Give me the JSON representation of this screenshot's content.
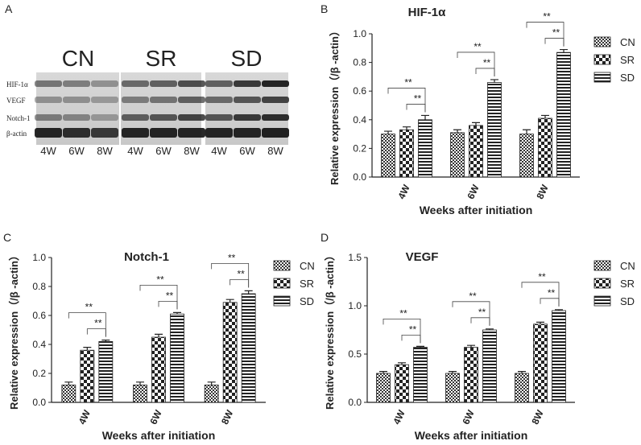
{
  "panel_labels": [
    "A",
    "B",
    "C",
    "D"
  ],
  "blot": {
    "group_labels": [
      "CN",
      "SR",
      "SD"
    ],
    "row_labels": [
      "HIF-1α",
      "VEGF",
      "Notch-1",
      "β-actin"
    ],
    "lane_labels": [
      "4W",
      "6W",
      "8W",
      "4W",
      "6W",
      "8W",
      "4W",
      "6W",
      "8W"
    ]
  },
  "chart_data": [
    {
      "type": "bar",
      "title": "HIF-1α",
      "y_label": "Relative expression（/β -actin）",
      "x_label": "Weeks after initiation",
      "categories": [
        "4W",
        "6W",
        "8W"
      ],
      "ylim": [
        0,
        1.0
      ],
      "yticks": [
        {
          "value": 0,
          "label": "0.0"
        },
        0.2,
        0.4,
        0.6,
        0.8,
        {
          "value": 1.0,
          "label": "1.0"
        }
      ],
      "legend": "right",
      "series": [
        {
          "name": "CN",
          "color": "#222222",
          "pattern": "fine-checker",
          "values": [
            0.3,
            0.31,
            0.3
          ],
          "errors": [
            0.02,
            0.02,
            0.03
          ]
        },
        {
          "name": "SR",
          "color": "#222222",
          "pattern": "checker",
          "values": [
            0.33,
            0.36,
            0.41
          ],
          "errors": [
            0.02,
            0.02,
            0.02
          ]
        },
        {
          "name": "SD",
          "color": "#222222",
          "pattern": "stripes",
          "values": [
            0.4,
            0.66,
            0.87
          ],
          "errors": [
            0.03,
            0.02,
            0.02
          ]
        }
      ],
      "significance": [
        [
          "**",
          "**"
        ],
        [
          "**",
          "**"
        ],
        [
          "**",
          "**"
        ]
      ]
    },
    {
      "type": "bar",
      "title": "Notch-1",
      "y_label": "Relative expression（/β -actin）",
      "x_label": "Weeks after initiation",
      "categories": [
        "4W",
        "6W",
        "8W"
      ],
      "ylim": [
        0,
        1.0
      ],
      "yticks": [
        {
          "value": 0,
          "label": "0.0"
        },
        0.2,
        0.4,
        0.6,
        0.8,
        {
          "value": 1.0,
          "label": "1.0"
        }
      ],
      "legend": "right",
      "series": [
        {
          "name": "CN",
          "color": "#222222",
          "pattern": "fine-checker",
          "values": [
            0.12,
            0.12,
            0.12
          ],
          "errors": [
            0.02,
            0.02,
            0.02
          ]
        },
        {
          "name": "SR",
          "color": "#222222",
          "pattern": "checker",
          "values": [
            0.36,
            0.45,
            0.69
          ],
          "errors": [
            0.02,
            0.02,
            0.02
          ]
        },
        {
          "name": "SD",
          "color": "#222222",
          "pattern": "stripes",
          "values": [
            0.42,
            0.61,
            0.75
          ],
          "errors": [
            0.01,
            0.01,
            0.02
          ]
        }
      ],
      "significance": [
        [
          "**",
          "**"
        ],
        [
          "**",
          "**"
        ],
        [
          "**",
          "**"
        ]
      ]
    },
    {
      "type": "bar",
      "title": "VEGF",
      "y_label": "Relative expression（/β -actin）",
      "x_label": "Weeks after initiation",
      "categories": [
        "4W",
        "6W",
        "8W"
      ],
      "ylim": [
        0,
        1.5
      ],
      "yticks": [
        {
          "value": 0,
          "label": "0.0"
        },
        0.5,
        {
          "value": 1.0,
          "label": "1.0"
        },
        1.5
      ],
      "legend": "right",
      "series": [
        {
          "name": "CN",
          "color": "#222222",
          "pattern": "fine-checker",
          "values": [
            0.3,
            0.3,
            0.3
          ],
          "errors": [
            0.02,
            0.02,
            0.02
          ]
        },
        {
          "name": "SR",
          "color": "#222222",
          "pattern": "checker",
          "values": [
            0.39,
            0.57,
            0.81
          ],
          "errors": [
            0.02,
            0.02,
            0.02
          ]
        },
        {
          "name": "SD",
          "color": "#222222",
          "pattern": "stripes",
          "values": [
            0.57,
            0.75,
            0.95
          ],
          "errors": [
            0.01,
            0.01,
            0.01
          ]
        }
      ],
      "significance": [
        [
          "**",
          "**"
        ],
        [
          "**",
          "**"
        ],
        [
          "**",
          "**"
        ]
      ]
    }
  ]
}
